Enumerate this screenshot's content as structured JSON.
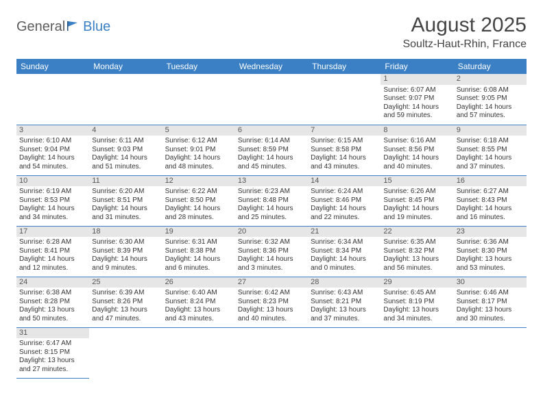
{
  "logo": {
    "text1": "General",
    "text2": "Blue"
  },
  "title": "August 2025",
  "location": "Soultz-Haut-Rhin, France",
  "colors": {
    "header_bg": "#3b7fc4",
    "header_text": "#ffffff",
    "daynum_bg": "#e6e6e6",
    "border": "#3b7fc4",
    "body_text": "#333333",
    "logo_gray": "#5c5c5c",
    "logo_blue": "#3b7fc4"
  },
  "fonts": {
    "body_pt": 10,
    "header_pt": 12,
    "title_pt": 30,
    "location_pt": 16
  },
  "weekdays": [
    "Sunday",
    "Monday",
    "Tuesday",
    "Wednesday",
    "Thursday",
    "Friday",
    "Saturday"
  ],
  "weeks": [
    [
      null,
      null,
      null,
      null,
      null,
      {
        "day": "1",
        "sunrise": "Sunrise: 6:07 AM",
        "sunset": "Sunset: 9:07 PM",
        "daylight": "Daylight: 14 hours and 59 minutes."
      },
      {
        "day": "2",
        "sunrise": "Sunrise: 6:08 AM",
        "sunset": "Sunset: 9:05 PM",
        "daylight": "Daylight: 14 hours and 57 minutes."
      }
    ],
    [
      {
        "day": "3",
        "sunrise": "Sunrise: 6:10 AM",
        "sunset": "Sunset: 9:04 PM",
        "daylight": "Daylight: 14 hours and 54 minutes."
      },
      {
        "day": "4",
        "sunrise": "Sunrise: 6:11 AM",
        "sunset": "Sunset: 9:03 PM",
        "daylight": "Daylight: 14 hours and 51 minutes."
      },
      {
        "day": "5",
        "sunrise": "Sunrise: 6:12 AM",
        "sunset": "Sunset: 9:01 PM",
        "daylight": "Daylight: 14 hours and 48 minutes."
      },
      {
        "day": "6",
        "sunrise": "Sunrise: 6:14 AM",
        "sunset": "Sunset: 8:59 PM",
        "daylight": "Daylight: 14 hours and 45 minutes."
      },
      {
        "day": "7",
        "sunrise": "Sunrise: 6:15 AM",
        "sunset": "Sunset: 8:58 PM",
        "daylight": "Daylight: 14 hours and 43 minutes."
      },
      {
        "day": "8",
        "sunrise": "Sunrise: 6:16 AM",
        "sunset": "Sunset: 8:56 PM",
        "daylight": "Daylight: 14 hours and 40 minutes."
      },
      {
        "day": "9",
        "sunrise": "Sunrise: 6:18 AM",
        "sunset": "Sunset: 8:55 PM",
        "daylight": "Daylight: 14 hours and 37 minutes."
      }
    ],
    [
      {
        "day": "10",
        "sunrise": "Sunrise: 6:19 AM",
        "sunset": "Sunset: 8:53 PM",
        "daylight": "Daylight: 14 hours and 34 minutes."
      },
      {
        "day": "11",
        "sunrise": "Sunrise: 6:20 AM",
        "sunset": "Sunset: 8:51 PM",
        "daylight": "Daylight: 14 hours and 31 minutes."
      },
      {
        "day": "12",
        "sunrise": "Sunrise: 6:22 AM",
        "sunset": "Sunset: 8:50 PM",
        "daylight": "Daylight: 14 hours and 28 minutes."
      },
      {
        "day": "13",
        "sunrise": "Sunrise: 6:23 AM",
        "sunset": "Sunset: 8:48 PM",
        "daylight": "Daylight: 14 hours and 25 minutes."
      },
      {
        "day": "14",
        "sunrise": "Sunrise: 6:24 AM",
        "sunset": "Sunset: 8:46 PM",
        "daylight": "Daylight: 14 hours and 22 minutes."
      },
      {
        "day": "15",
        "sunrise": "Sunrise: 6:26 AM",
        "sunset": "Sunset: 8:45 PM",
        "daylight": "Daylight: 14 hours and 19 minutes."
      },
      {
        "day": "16",
        "sunrise": "Sunrise: 6:27 AM",
        "sunset": "Sunset: 8:43 PM",
        "daylight": "Daylight: 14 hours and 16 minutes."
      }
    ],
    [
      {
        "day": "17",
        "sunrise": "Sunrise: 6:28 AM",
        "sunset": "Sunset: 8:41 PM",
        "daylight": "Daylight: 14 hours and 12 minutes."
      },
      {
        "day": "18",
        "sunrise": "Sunrise: 6:30 AM",
        "sunset": "Sunset: 8:39 PM",
        "daylight": "Daylight: 14 hours and 9 minutes."
      },
      {
        "day": "19",
        "sunrise": "Sunrise: 6:31 AM",
        "sunset": "Sunset: 8:38 PM",
        "daylight": "Daylight: 14 hours and 6 minutes."
      },
      {
        "day": "20",
        "sunrise": "Sunrise: 6:32 AM",
        "sunset": "Sunset: 8:36 PM",
        "daylight": "Daylight: 14 hours and 3 minutes."
      },
      {
        "day": "21",
        "sunrise": "Sunrise: 6:34 AM",
        "sunset": "Sunset: 8:34 PM",
        "daylight": "Daylight: 14 hours and 0 minutes."
      },
      {
        "day": "22",
        "sunrise": "Sunrise: 6:35 AM",
        "sunset": "Sunset: 8:32 PM",
        "daylight": "Daylight: 13 hours and 56 minutes."
      },
      {
        "day": "23",
        "sunrise": "Sunrise: 6:36 AM",
        "sunset": "Sunset: 8:30 PM",
        "daylight": "Daylight: 13 hours and 53 minutes."
      }
    ],
    [
      {
        "day": "24",
        "sunrise": "Sunrise: 6:38 AM",
        "sunset": "Sunset: 8:28 PM",
        "daylight": "Daylight: 13 hours and 50 minutes."
      },
      {
        "day": "25",
        "sunrise": "Sunrise: 6:39 AM",
        "sunset": "Sunset: 8:26 PM",
        "daylight": "Daylight: 13 hours and 47 minutes."
      },
      {
        "day": "26",
        "sunrise": "Sunrise: 6:40 AM",
        "sunset": "Sunset: 8:24 PM",
        "daylight": "Daylight: 13 hours and 43 minutes."
      },
      {
        "day": "27",
        "sunrise": "Sunrise: 6:42 AM",
        "sunset": "Sunset: 8:23 PM",
        "daylight": "Daylight: 13 hours and 40 minutes."
      },
      {
        "day": "28",
        "sunrise": "Sunrise: 6:43 AM",
        "sunset": "Sunset: 8:21 PM",
        "daylight": "Daylight: 13 hours and 37 minutes."
      },
      {
        "day": "29",
        "sunrise": "Sunrise: 6:45 AM",
        "sunset": "Sunset: 8:19 PM",
        "daylight": "Daylight: 13 hours and 34 minutes."
      },
      {
        "day": "30",
        "sunrise": "Sunrise: 6:46 AM",
        "sunset": "Sunset: 8:17 PM",
        "daylight": "Daylight: 13 hours and 30 minutes."
      }
    ],
    [
      {
        "day": "31",
        "sunrise": "Sunrise: 6:47 AM",
        "sunset": "Sunset: 8:15 PM",
        "daylight": "Daylight: 13 hours and 27 minutes."
      },
      null,
      null,
      null,
      null,
      null,
      null
    ]
  ]
}
